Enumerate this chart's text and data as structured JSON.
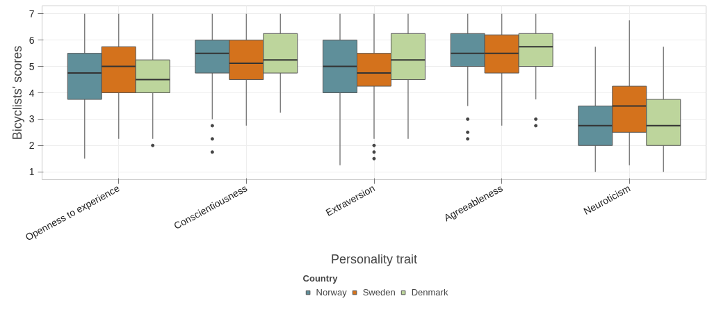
{
  "chart_data": {
    "type": "box",
    "xlabel": "Personality trait",
    "ylabel": "Bicyclists' scores",
    "legend_title": "Country",
    "categories": [
      "Openness to experience",
      "Conscientiousness",
      "Extraversion",
      "Agreeableness",
      "Neuroticism"
    ],
    "ylim": [
      0.7,
      7.3
    ],
    "yticks": [
      1,
      2,
      3,
      4,
      5,
      6,
      7
    ],
    "grid": true,
    "legend": "bottom",
    "series": [
      {
        "name": "Norway",
        "color": "#5f8f9a",
        "boxes": [
          {
            "low": 1.5,
            "q1": 3.75,
            "median": 4.75,
            "q3": 5.5,
            "high": 7
          },
          {
            "low": 3,
            "q1": 4.75,
            "median": 5.5,
            "q3": 6,
            "high": 7,
            "outliers": [
              2.75,
              2.25,
              1.75
            ]
          },
          {
            "low": 1.25,
            "q1": 4,
            "median": 5,
            "q3": 6,
            "high": 7
          },
          {
            "low": 3.5,
            "q1": 5,
            "median": 5.5,
            "q3": 6.25,
            "high": 7,
            "outliers": [
              3,
              2.5,
              2.25
            ]
          },
          {
            "low": 1,
            "q1": 2,
            "median": 2.75,
            "q3": 3.5,
            "high": 5.75
          }
        ]
      },
      {
        "name": "Sweden",
        "color": "#d4721c",
        "boxes": [
          {
            "low": 2.25,
            "q1": 4,
            "median": 5,
            "q3": 5.75,
            "high": 7
          },
          {
            "low": 2.75,
            "q1": 4.5,
            "median": 5.125,
            "q3": 6,
            "high": 7
          },
          {
            "low": 2.25,
            "q1": 4.25,
            "median": 4.75,
            "q3": 5.5,
            "high": 7,
            "outliers": [
              2,
              1.75,
              1.5
            ]
          },
          {
            "low": 2.75,
            "q1": 4.75,
            "median": 5.5,
            "q3": 6.2,
            "high": 7
          },
          {
            "low": 1.25,
            "q1": 2.5,
            "median": 3.5,
            "q3": 4.25,
            "high": 6.75
          }
        ]
      },
      {
        "name": "Denmark",
        "color": "#bdd59c",
        "boxes": [
          {
            "low": 2.25,
            "q1": 4,
            "median": 4.5,
            "q3": 5.25,
            "high": 7,
            "outliers": [
              2
            ]
          },
          {
            "low": 3.25,
            "q1": 4.75,
            "median": 5.25,
            "q3": 6.25,
            "high": 7
          },
          {
            "low": 2.25,
            "q1": 4.5,
            "median": 5.25,
            "q3": 6.25,
            "high": 7
          },
          {
            "low": 3.75,
            "q1": 5,
            "median": 5.75,
            "q3": 6.25,
            "high": 7,
            "outliers": [
              3,
              2.75
            ]
          },
          {
            "low": 1,
            "q1": 2,
            "median": 2.75,
            "q3": 3.75,
            "high": 5.75
          }
        ]
      }
    ]
  }
}
